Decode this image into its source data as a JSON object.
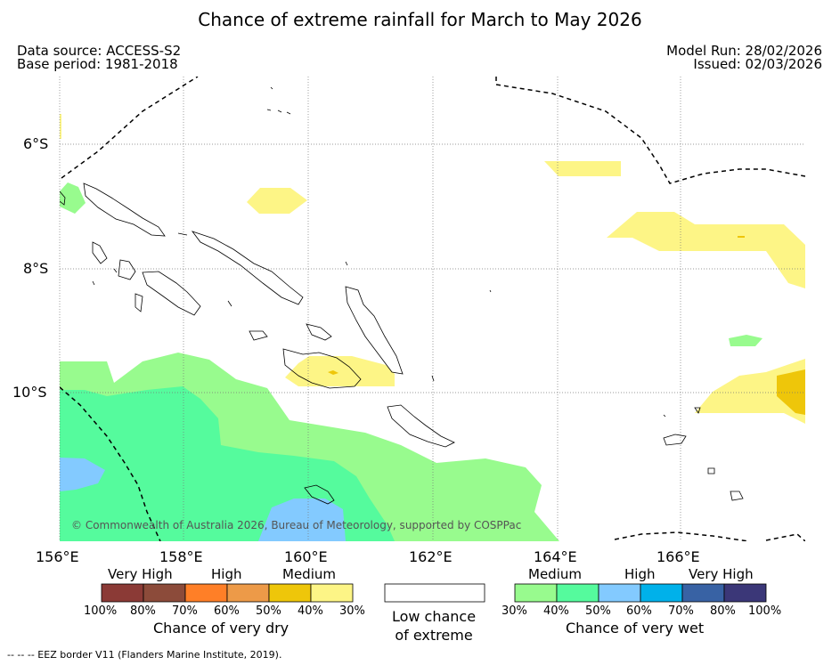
{
  "title": "Chance of extreme rainfall for March to May 2026",
  "header": {
    "data_source": "Data source: ACCESS-S2",
    "base_period": "Base period: 1981-2018",
    "model_run": "Model Run: 28/02/2026",
    "issued": "Issued: 02/03/2026"
  },
  "map": {
    "lat_labels": [
      "6°S",
      "8°S",
      "10°S"
    ],
    "lon_labels": [
      "156°E",
      "158°E",
      "160°E",
      "162°E",
      "164°E",
      "166°E"
    ],
    "copyright": "© Commonwealth of Australia 2026, Bureau of Meteorology, supported by COSPPac"
  },
  "legend": {
    "dry": {
      "categories": [
        "Very High",
        "High",
        "Medium"
      ],
      "colors": [
        "#8b3a36",
        "#8c4b3a",
        "#ff7f27",
        "#ed9a48",
        "#eec60a",
        "#fdf586"
      ],
      "percents": [
        "100%",
        "80%",
        "70%",
        "60%",
        "50%",
        "40%",
        "30%"
      ],
      "label": "Chance of very dry"
    },
    "neutral": {
      "label_line1": "Low chance",
      "label_line2": "of extreme"
    },
    "wet": {
      "categories": [
        "Medium",
        "High",
        "Very High"
      ],
      "colors": [
        "#98fb8e",
        "#55fb9d",
        "#83caff",
        "#00b1ea",
        "#3862a4",
        "#3b3778"
      ],
      "percents": [
        "30%",
        "40%",
        "50%",
        "60%",
        "70%",
        "80%",
        "100%"
      ],
      "label": "Chance of very wet"
    }
  },
  "footer": "--  --  -- EEZ border V11 (Flanders Marine Institute, 2019)."
}
